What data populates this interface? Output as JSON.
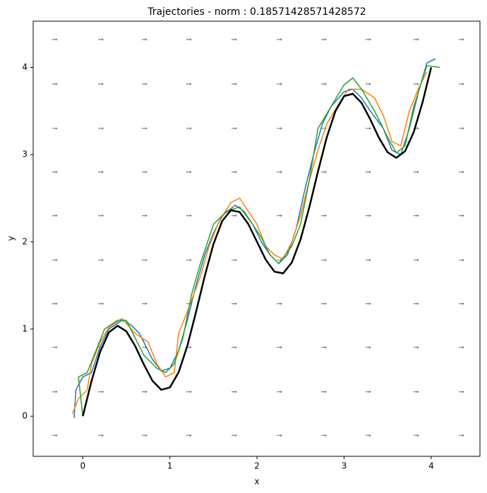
{
  "chart_data": {
    "type": "line",
    "title": "Trajectories - norm : 0.18571428571428572",
    "xlabel": "x",
    "ylabel": "y",
    "xlim": [
      -0.57,
      4.56
    ],
    "ylim": [
      -0.46,
      4.53
    ],
    "xticks": [
      0,
      1,
      2,
      3,
      4
    ],
    "yticks": [
      0,
      1,
      2,
      3,
      4
    ],
    "quiver": {
      "color": "#808080",
      "x": [
        -0.32,
        0.21,
        0.71,
        1.22,
        1.74,
        2.26,
        2.77,
        3.28,
        3.83,
        4.35
      ],
      "y": [
        4.32,
        3.81,
        3.3,
        2.8,
        2.3,
        1.79,
        1.29,
        0.79,
        0.28,
        -0.22
      ]
    },
    "series": [
      {
        "color": "#1f77b4",
        "x": [
          -0.1,
          -0.08,
          0,
          0.1,
          0.2,
          0.3,
          0.45,
          0.55,
          0.65,
          0.7,
          0.8,
          0.9,
          1.0,
          1.1,
          1.2,
          1.3,
          1.4,
          1.5,
          1.6,
          1.75,
          1.85,
          1.95,
          2.05,
          2.15,
          2.25,
          2.35,
          2.45,
          2.55,
          2.65,
          2.75,
          2.85,
          3.0,
          3.1,
          3.2,
          3.3,
          3.45,
          3.55,
          3.65,
          3.75,
          3.85,
          3.95,
          4.05
        ],
        "values": [
          -0.02,
          0.3,
          0.45,
          0.5,
          0.8,
          1.0,
          1.1,
          1.05,
          0.95,
          0.85,
          0.65,
          0.52,
          0.55,
          0.75,
          1.1,
          1.5,
          1.85,
          2.1,
          2.3,
          2.42,
          2.35,
          2.2,
          2.0,
          1.85,
          1.75,
          1.85,
          2.15,
          2.6,
          3.0,
          3.35,
          3.55,
          3.72,
          3.75,
          3.65,
          3.5,
          3.3,
          3.05,
          3.0,
          3.3,
          3.7,
          4.05,
          4.1
        ]
      },
      {
        "color": "#ff7f0e",
        "x": [
          -0.12,
          -0.05,
          0.05,
          0.1,
          0.2,
          0.3,
          0.45,
          0.6,
          0.75,
          0.85,
          0.95,
          1.05,
          1.1,
          1.2,
          1.35,
          1.45,
          1.55,
          1.7,
          1.8,
          1.9,
          2.0,
          2.1,
          2.2,
          2.3,
          2.4,
          2.5,
          2.6,
          2.7,
          2.8,
          2.95,
          3.05,
          3.2,
          3.35,
          3.45,
          3.55,
          3.65,
          3.75,
          3.85,
          3.95
        ],
        "values": [
          0.03,
          0.2,
          0.3,
          0.6,
          0.85,
          1.02,
          1.12,
          0.95,
          0.85,
          0.6,
          0.45,
          0.5,
          0.95,
          1.2,
          1.6,
          1.95,
          2.2,
          2.45,
          2.5,
          2.35,
          2.2,
          1.95,
          1.85,
          1.8,
          2.0,
          2.3,
          2.7,
          3.05,
          3.35,
          3.6,
          3.75,
          3.75,
          3.65,
          3.45,
          3.15,
          3.1,
          3.5,
          3.75,
          3.95
        ]
      },
      {
        "color": "#2ca02c",
        "x": [
          0,
          -0.05,
          0.05,
          0.15,
          0.25,
          0.4,
          0.5,
          0.6,
          0.7,
          0.85,
          0.95,
          1.05,
          1.15,
          1.25,
          1.35,
          1.5,
          1.65,
          1.8,
          1.95,
          2.05,
          2.15,
          2.25,
          2.4,
          2.5,
          2.6,
          2.7,
          2.85,
          3.0,
          3.1,
          3.2,
          3.35,
          3.5,
          3.6,
          3.7,
          3.8,
          3.95,
          4.1
        ],
        "values": [
          0,
          0.45,
          0.5,
          0.75,
          1.0,
          1.1,
          1.1,
          0.9,
          0.7,
          0.55,
          0.5,
          0.6,
          0.9,
          1.4,
          1.75,
          2.2,
          2.35,
          2.4,
          2.2,
          2.05,
          1.85,
          1.75,
          1.95,
          2.2,
          2.7,
          3.3,
          3.55,
          3.8,
          3.88,
          3.75,
          3.5,
          3.2,
          3.02,
          3.1,
          3.55,
          4.02,
          4.0
        ]
      },
      {
        "color": "#000000",
        "x": [
          0,
          0.1,
          0.2,
          0.3,
          0.4,
          0.5,
          0.6,
          0.7,
          0.8,
          0.9,
          1.0,
          1.1,
          1.2,
          1.3,
          1.4,
          1.5,
          1.6,
          1.7,
          1.8,
          1.9,
          2.0,
          2.1,
          2.2,
          2.3,
          2.4,
          2.5,
          2.6,
          2.7,
          2.8,
          2.9,
          3.0,
          3.1,
          3.2,
          3.3,
          3.4,
          3.5,
          3.6,
          3.7,
          3.8,
          3.9,
          4.0
        ],
        "values": [
          0,
          0.404,
          0.742,
          0.962,
          1.037,
          0.974,
          0.807,
          0.595,
          0.406,
          0.303,
          0.33,
          0.503,
          0.806,
          1.195,
          1.607,
          1.974,
          2.237,
          2.362,
          2.342,
          2.204,
          2.0,
          1.796,
          1.658,
          1.638,
          1.763,
          2.026,
          2.393,
          2.805,
          3.194,
          3.497,
          3.67,
          3.697,
          3.594,
          3.405,
          3.193,
          3.026,
          2.963,
          3.038,
          3.258,
          3.596,
          4.0
        ]
      }
    ]
  }
}
